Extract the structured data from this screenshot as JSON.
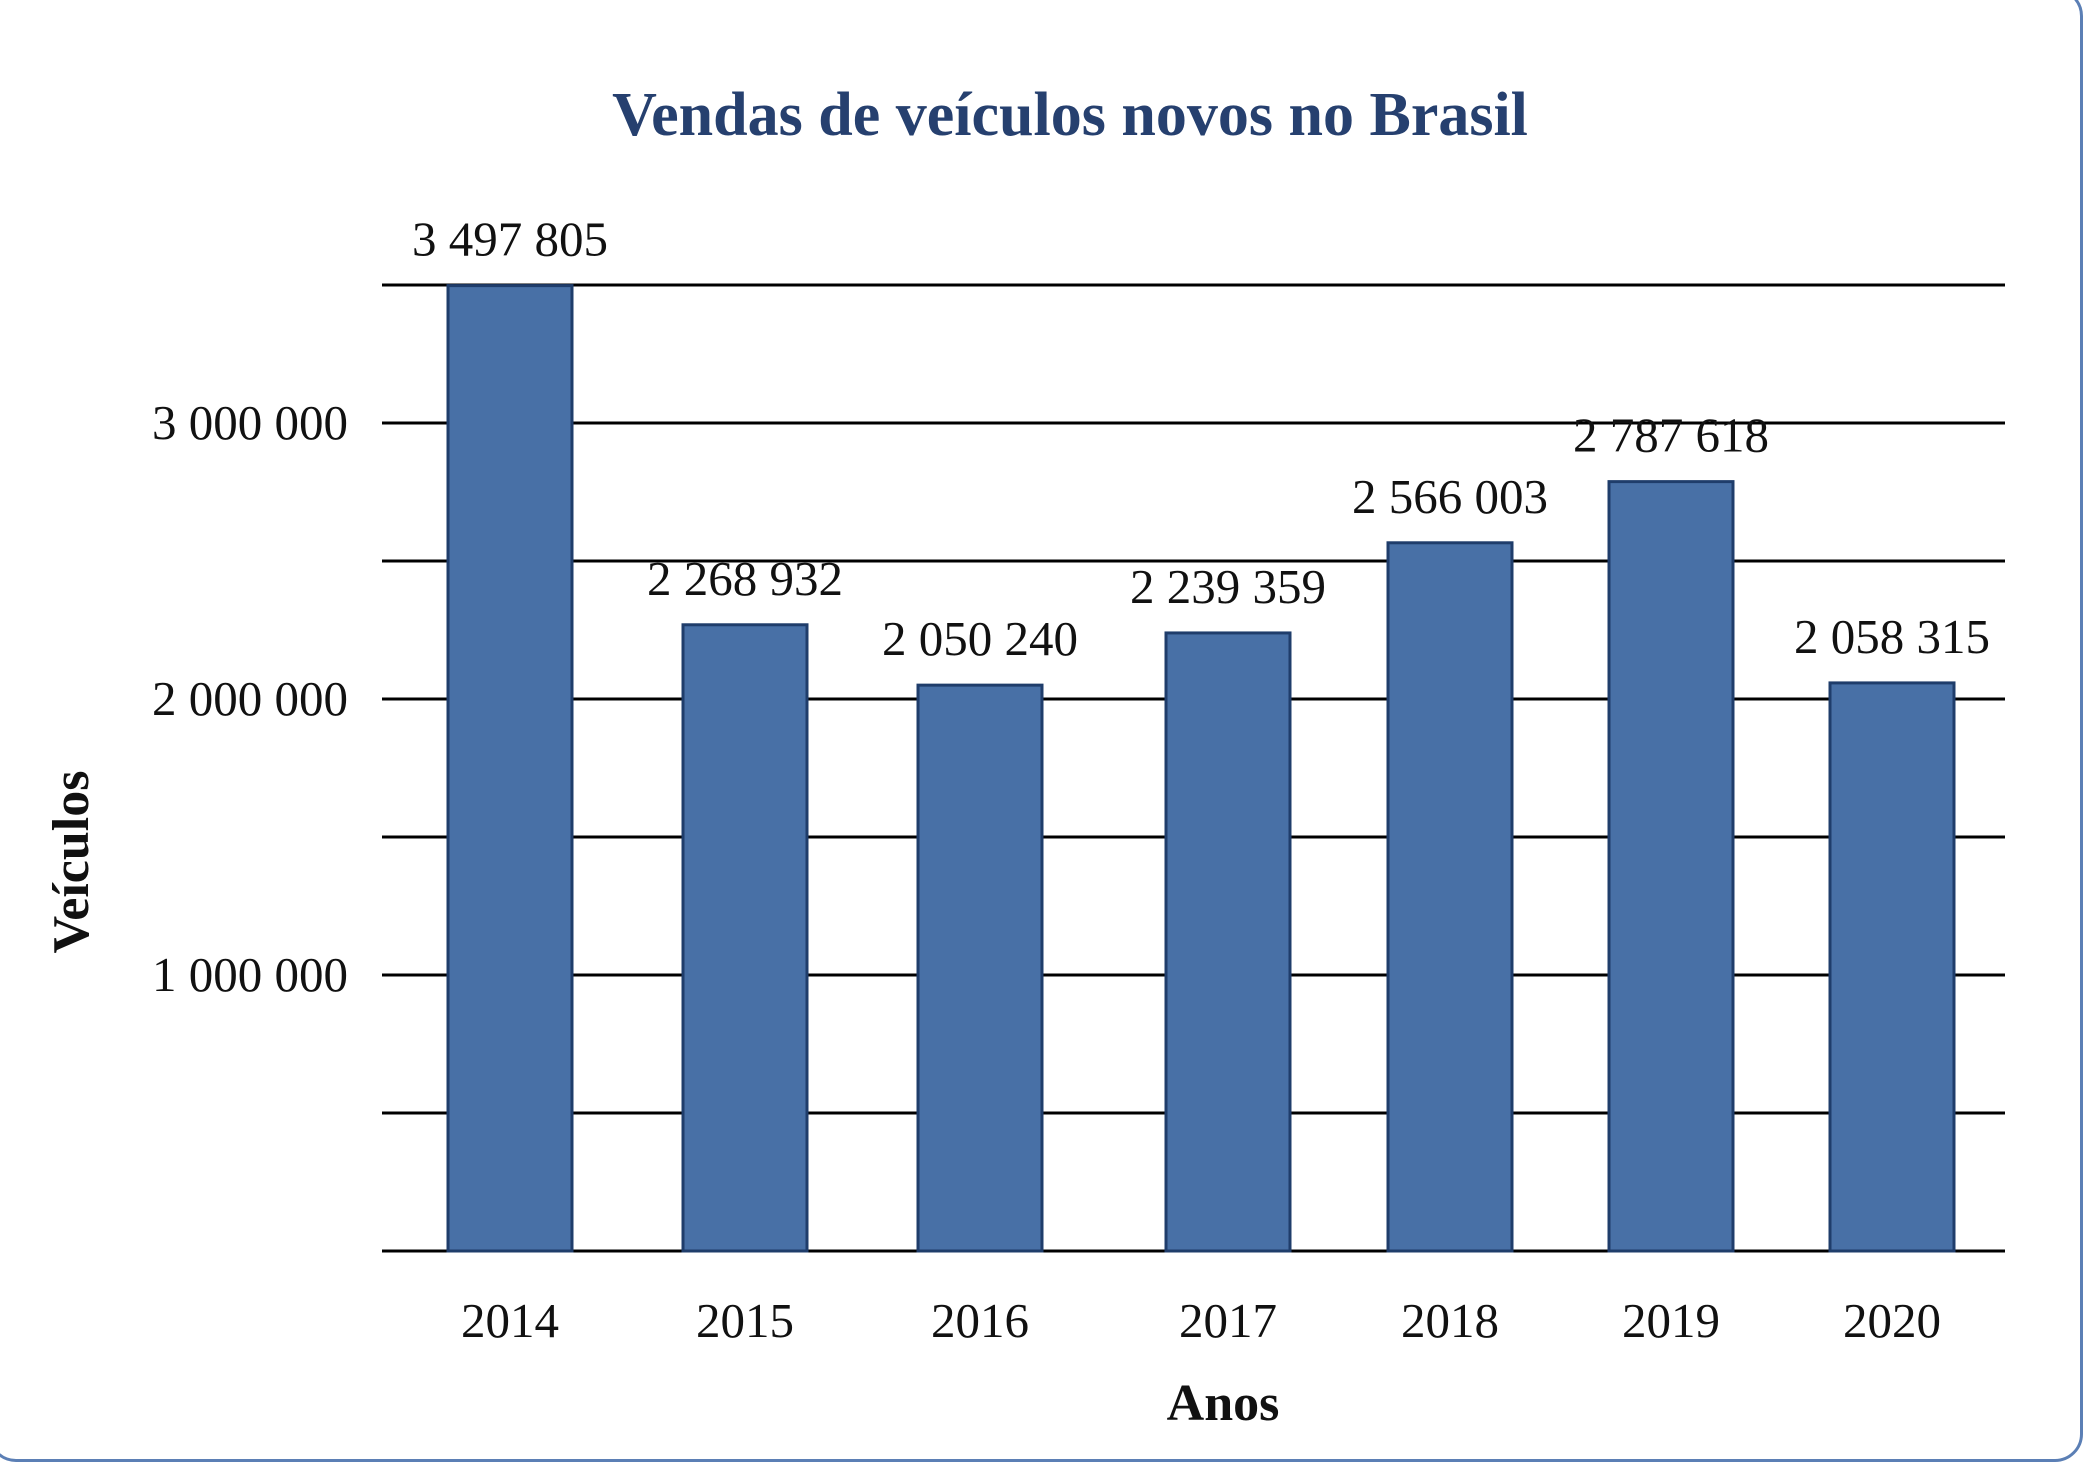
{
  "chart_data": {
    "type": "bar",
    "title": "Vendas de veículos novos no Brasil",
    "xlabel": "Anos",
    "ylabel": "Veículos",
    "categories": [
      "2014",
      "2015",
      "2016",
      "2017",
      "2018",
      "2019",
      "2020"
    ],
    "values": [
      3497805,
      2268932,
      2050240,
      2239359,
      2566003,
      2787618,
      2058315
    ],
    "data_labels": [
      "3 497 805",
      "2 268 932",
      "2 050 240",
      "2 239 359",
      "2 566 003",
      "2 787 618",
      "2 058 315"
    ],
    "yticks": [
      {
        "value": 1000000,
        "label": "1 000 000"
      },
      {
        "value": 2000000,
        "label": "2 000 000"
      },
      {
        "value": 3000000,
        "label": "3 000 000"
      }
    ],
    "gridlines": [
      0,
      500000,
      1000000,
      1500000,
      2000000,
      2500000,
      3000000,
      3500000
    ],
    "ylim": [
      0,
      3500000
    ],
    "grid": true,
    "colors": {
      "bar": "#4870a6",
      "bar_border": "#1f3d6b",
      "title": "#26406f",
      "frame": "#5b7fb5"
    }
  }
}
